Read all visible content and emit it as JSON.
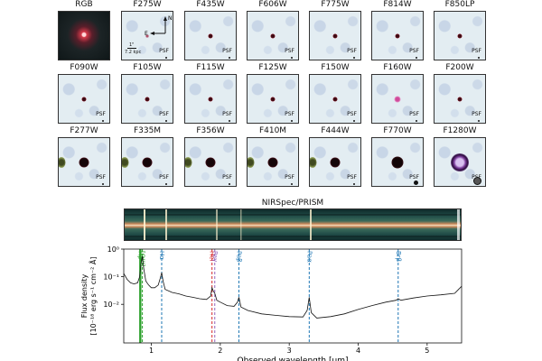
{
  "cutouts": {
    "rows": [
      [
        {
          "filter": "RGB",
          "kind": "rgb",
          "psf": "none"
        },
        {
          "filter": "F275W",
          "kind": "faint",
          "psf": "small"
        },
        {
          "filter": "F435W",
          "kind": "point",
          "psf": "small"
        },
        {
          "filter": "F606W",
          "kind": "point",
          "psf": "small"
        },
        {
          "filter": "F775W",
          "kind": "point",
          "psf": "small"
        },
        {
          "filter": "F814W",
          "kind": "point",
          "psf": "small"
        },
        {
          "filter": "F850LP",
          "kind": "point",
          "psf": "small"
        }
      ],
      [
        {
          "filter": "F090W",
          "kind": "point",
          "psf": "small"
        },
        {
          "filter": "F105W",
          "kind": "point",
          "psf": "small"
        },
        {
          "filter": "F115W",
          "kind": "point",
          "psf": "small"
        },
        {
          "filter": "F125W",
          "kind": "point",
          "psf": "small"
        },
        {
          "filter": "F150W",
          "kind": "point",
          "psf": "small"
        },
        {
          "filter": "F160W",
          "kind": "pinkpoint",
          "psf": "small"
        },
        {
          "filter": "F200W",
          "kind": "point",
          "psf": "small"
        }
      ],
      [
        {
          "filter": "F277W",
          "kind": "bright",
          "psf": "small"
        },
        {
          "filter": "F335M",
          "kind": "bright",
          "psf": "small"
        },
        {
          "filter": "F356W",
          "kind": "bright",
          "psf": "small"
        },
        {
          "filter": "F410M",
          "kind": "bright",
          "psf": "small"
        },
        {
          "filter": "F444W",
          "kind": "bright",
          "psf": "small"
        },
        {
          "filter": "F770W",
          "kind": "blob",
          "psf": "big"
        },
        {
          "filter": "F1280W",
          "kind": "ring",
          "psf": "huge"
        }
      ]
    ],
    "psf_label": "PSF",
    "compass": {
      "north": "N",
      "east": "E"
    },
    "scale": {
      "angular": "1\"",
      "physical": "7.2 kpc"
    }
  },
  "spectrum2d": {
    "title": "NIRSpec/PRISM"
  },
  "chart_data": {
    "type": "line",
    "xlabel": "Observed wavelength [μm]",
    "ylabel_line1": "Flux density",
    "ylabel_line2": "[10⁻¹⁸ erg s⁻¹ cm⁻² Å]",
    "xlim": [
      0.6,
      5.5
    ],
    "ylim": [
      0.0004,
      1.0
    ],
    "yscale": "log",
    "xticks": [
      1,
      2,
      3,
      4,
      5
    ],
    "yticks": [
      {
        "value": 1,
        "label": "10⁰"
      },
      {
        "value": 0.1,
        "label": "10⁻¹"
      },
      {
        "value": 0.01,
        "label": "10⁻²"
      }
    ],
    "lines": [
      {
        "name": "Hβ",
        "x": 0.84,
        "color": "#2ca02c",
        "style": "solid"
      },
      {
        "name": "[OIII]",
        "x": 0.87,
        "color": "#2ca02c",
        "style": "dashed"
      },
      {
        "name": "Hα",
        "x": 1.15,
        "color": "#1f77b4",
        "style": "dashed"
      },
      {
        "name": "HeI",
        "x": 1.88,
        "color": "#d62728",
        "style": "dashed"
      },
      {
        "name": "Paγ",
        "x": 1.92,
        "color": "#9467bd",
        "style": "dashed"
      },
      {
        "name": "Paβ",
        "x": 2.27,
        "color": "#1f77b4",
        "style": "dashed"
      },
      {
        "name": "Paα",
        "x": 3.29,
        "color": "#1f77b4",
        "style": "dashed"
      },
      {
        "name": "Brβ",
        "x": 4.58,
        "color": "#1f77b4",
        "style": "dashed"
      }
    ],
    "series": [
      {
        "name": "spectrum",
        "x": [
          0.6,
          0.65,
          0.7,
          0.75,
          0.8,
          0.83,
          0.85,
          0.87,
          0.89,
          0.92,
          0.96,
          1.0,
          1.05,
          1.1,
          1.13,
          1.15,
          1.17,
          1.2,
          1.3,
          1.4,
          1.5,
          1.6,
          1.7,
          1.8,
          1.86,
          1.88,
          1.9,
          1.92,
          1.95,
          2.0,
          2.1,
          2.2,
          2.25,
          2.27,
          2.3,
          2.4,
          2.6,
          2.8,
          3.0,
          3.2,
          3.26,
          3.29,
          3.32,
          3.4,
          3.6,
          3.8,
          4.0,
          4.2,
          4.4,
          4.55,
          4.58,
          4.62,
          4.8,
          5.0,
          5.2,
          5.4,
          5.5
        ],
        "y": [
          0.13,
          0.08,
          0.06,
          0.055,
          0.06,
          0.1,
          0.3,
          0.55,
          0.2,
          0.07,
          0.05,
          0.04,
          0.04,
          0.05,
          0.09,
          0.14,
          0.07,
          0.035,
          0.027,
          0.024,
          0.02,
          0.018,
          0.016,
          0.015,
          0.02,
          0.04,
          0.03,
          0.025,
          0.014,
          0.012,
          0.009,
          0.0085,
          0.012,
          0.018,
          0.008,
          0.006,
          0.0045,
          0.004,
          0.0036,
          0.0035,
          0.006,
          0.018,
          0.005,
          0.0032,
          0.0036,
          0.0045,
          0.0065,
          0.009,
          0.012,
          0.014,
          0.016,
          0.014,
          0.017,
          0.02,
          0.022,
          0.025,
          0.045
        ]
      }
    ]
  }
}
